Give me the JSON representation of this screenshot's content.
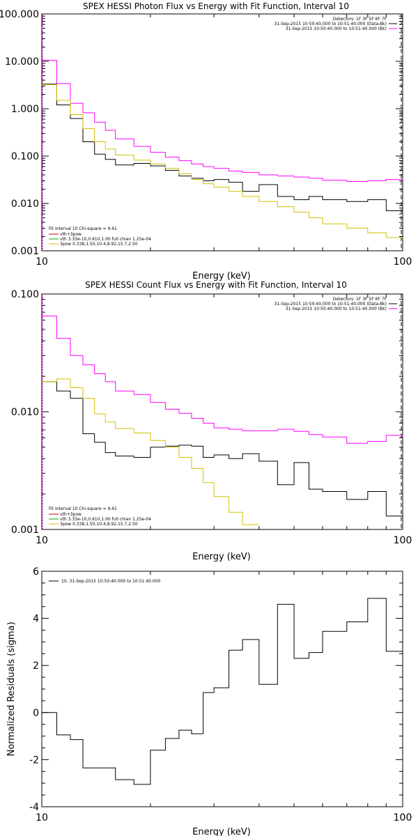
{
  "chart_data": [
    {
      "type": "line",
      "title": "SPEX HESSI Photon Flux vs Energy with Fit Function, Interval 10",
      "xlabel": "Energy (keV)",
      "ylabel": "",
      "xscale": "log",
      "yscale": "log",
      "xlim": [
        10,
        100
      ],
      "ylim": [
        0.001,
        100
      ],
      "xticks": [
        "10",
        "100"
      ],
      "yticks": [
        "0.001",
        "0.010",
        "0.100",
        "1.000",
        "10.000",
        "100.000"
      ],
      "legend_top_right": [
        "Detectors: 1F 3F 5F 6F 7F",
        "31-Sep-2015 10:50:40.000 to 10:51:40.000 (Data-Bk)",
        "31-Sep-2015 10:50:40.000 to 10:51:40.000 (Bk)"
      ],
      "legend_bottom_left": [
        "Fit Interval 10   Chi-square = 9.61",
        "vth+3pow",
        "vth 3.33e-10,0.610,1.00  full chian 1.25e-04",
        "3pow 0.338,1.50,10.4,8.92,15.7,2.50"
      ],
      "edges": [
        10,
        11,
        12,
        13,
        14,
        15,
        16,
        18,
        20,
        22,
        24,
        26,
        28,
        30,
        33,
        36,
        40,
        45,
        50,
        55,
        60,
        70,
        80,
        90,
        100
      ],
      "series": [
        {
          "color": "#000000",
          "values": [
            3.3,
            1.2,
            0.62,
            0.2,
            0.11,
            0.085,
            0.065,
            0.07,
            0.062,
            0.05,
            0.038,
            0.034,
            0.03,
            0.032,
            0.028,
            0.018,
            0.025,
            0.014,
            0.012,
            0.014,
            0.012,
            0.011,
            0.012,
            0.007
          ]
        },
        {
          "color": "#ff00ff",
          "values": [
            10.5,
            3.4,
            1.3,
            0.82,
            0.52,
            0.35,
            0.23,
            0.16,
            0.12,
            0.095,
            0.08,
            0.068,
            0.06,
            0.055,
            0.048,
            0.045,
            0.04,
            0.038,
            0.036,
            0.034,
            0.031,
            0.029,
            0.03,
            0.032
          ]
        },
        {
          "color": "#d4c000",
          "values": [
            3.2,
            1.5,
            0.75,
            0.38,
            0.2,
            0.14,
            0.105,
            0.082,
            0.068,
            0.055,
            0.042,
            0.032,
            0.026,
            0.022,
            0.018,
            0.014,
            0.011,
            0.0085,
            0.0065,
            0.005,
            0.0037,
            0.003,
            0.0024,
            0.0019
          ]
        }
      ]
    },
    {
      "type": "line",
      "title": "SPEX HESSI Count Flux vs Energy with Fit Function, Interval 10",
      "xlabel": "Energy (keV)",
      "ylabel": "",
      "xscale": "log",
      "yscale": "log",
      "xlim": [
        10,
        100
      ],
      "ylim": [
        0.001,
        0.1
      ],
      "xticks": [
        "10",
        "100"
      ],
      "yticks": [
        "0.001",
        "0.010",
        "0.100"
      ],
      "legend_top_right": [
        "Detectors: 1F 3F 5F 6F 7F",
        "31-Sep-2015 10:50:40.000 to 10:51:40.000 (Data-Bk)",
        "31-Sep-2015 10:50:40.000 to 10:51:40.000 (Bk)"
      ],
      "legend_bottom_left": [
        "Fit Interval 10   Chi-square = 9.61",
        "vth+3pow",
        "vth 3.33e-10,0.610,1.00  full chian 1.25e-04",
        "3pow 0.338,1.50,10.4,8.92,15.7,2.50"
      ],
      "edges": [
        10,
        11,
        12,
        13,
        14,
        15,
        16,
        18,
        20,
        22,
        24,
        26,
        28,
        30,
        33,
        36,
        40,
        45,
        50,
        55,
        60,
        70,
        80,
        90,
        100
      ],
      "series": [
        {
          "color": "#000000",
          "values": [
            0.018,
            0.015,
            0.013,
            0.0065,
            0.0055,
            0.0045,
            0.0042,
            0.0041,
            0.005,
            0.0051,
            0.0052,
            0.0051,
            0.0041,
            0.0043,
            0.004,
            0.0044,
            0.0038,
            0.0024,
            0.0037,
            0.0022,
            0.0021,
            0.0018,
            0.0021,
            0.0013
          ]
        },
        {
          "color": "#ff00ff",
          "values": [
            0.065,
            0.042,
            0.03,
            0.025,
            0.021,
            0.018,
            0.015,
            0.014,
            0.012,
            0.0105,
            0.0097,
            0.0088,
            0.008,
            0.0073,
            0.0071,
            0.0069,
            0.0069,
            0.0071,
            0.0068,
            0.0064,
            0.0061,
            0.0054,
            0.0056,
            0.0063
          ]
        },
        {
          "color": "#d4c000",
          "values": [
            0.018,
            0.019,
            0.016,
            0.013,
            0.0096,
            0.0082,
            0.0072,
            0.0066,
            0.0057,
            0.005,
            0.0041,
            0.0033,
            0.0025,
            0.0019,
            0.0014,
            0.0011,
            0.0009
          ]
        }
      ]
    },
    {
      "type": "line",
      "title": "",
      "xlabel": "Energy (keV)",
      "ylabel": "Normalized Residuals (sigma)",
      "xscale": "log",
      "yscale": "linear",
      "xlim": [
        10,
        100
      ],
      "ylim": [
        -4,
        6
      ],
      "xticks": [
        "10",
        "100"
      ],
      "yticks": [
        "-4",
        "-2",
        "0",
        "2",
        "4",
        "6"
      ],
      "legend": "10, 31-Sep-2015 10:50:40.000 to 10:51:40.000",
      "edges": [
        10,
        11,
        12,
        13,
        14,
        15,
        16,
        18,
        20,
        22,
        24,
        26,
        28,
        30,
        33,
        36,
        40,
        45,
        50,
        55,
        60,
        70,
        80,
        90,
        100
      ],
      "series": [
        {
          "color": "#000000",
          "values": [
            0.0,
            -0.95,
            -1.15,
            -2.35,
            -2.35,
            -2.35,
            -2.85,
            -3.05,
            -1.6,
            -1.1,
            -0.75,
            -0.9,
            0.85,
            1.05,
            2.65,
            3.1,
            1.2,
            4.6,
            2.3,
            2.55,
            3.45,
            3.85,
            4.85,
            2.6
          ]
        }
      ]
    }
  ]
}
